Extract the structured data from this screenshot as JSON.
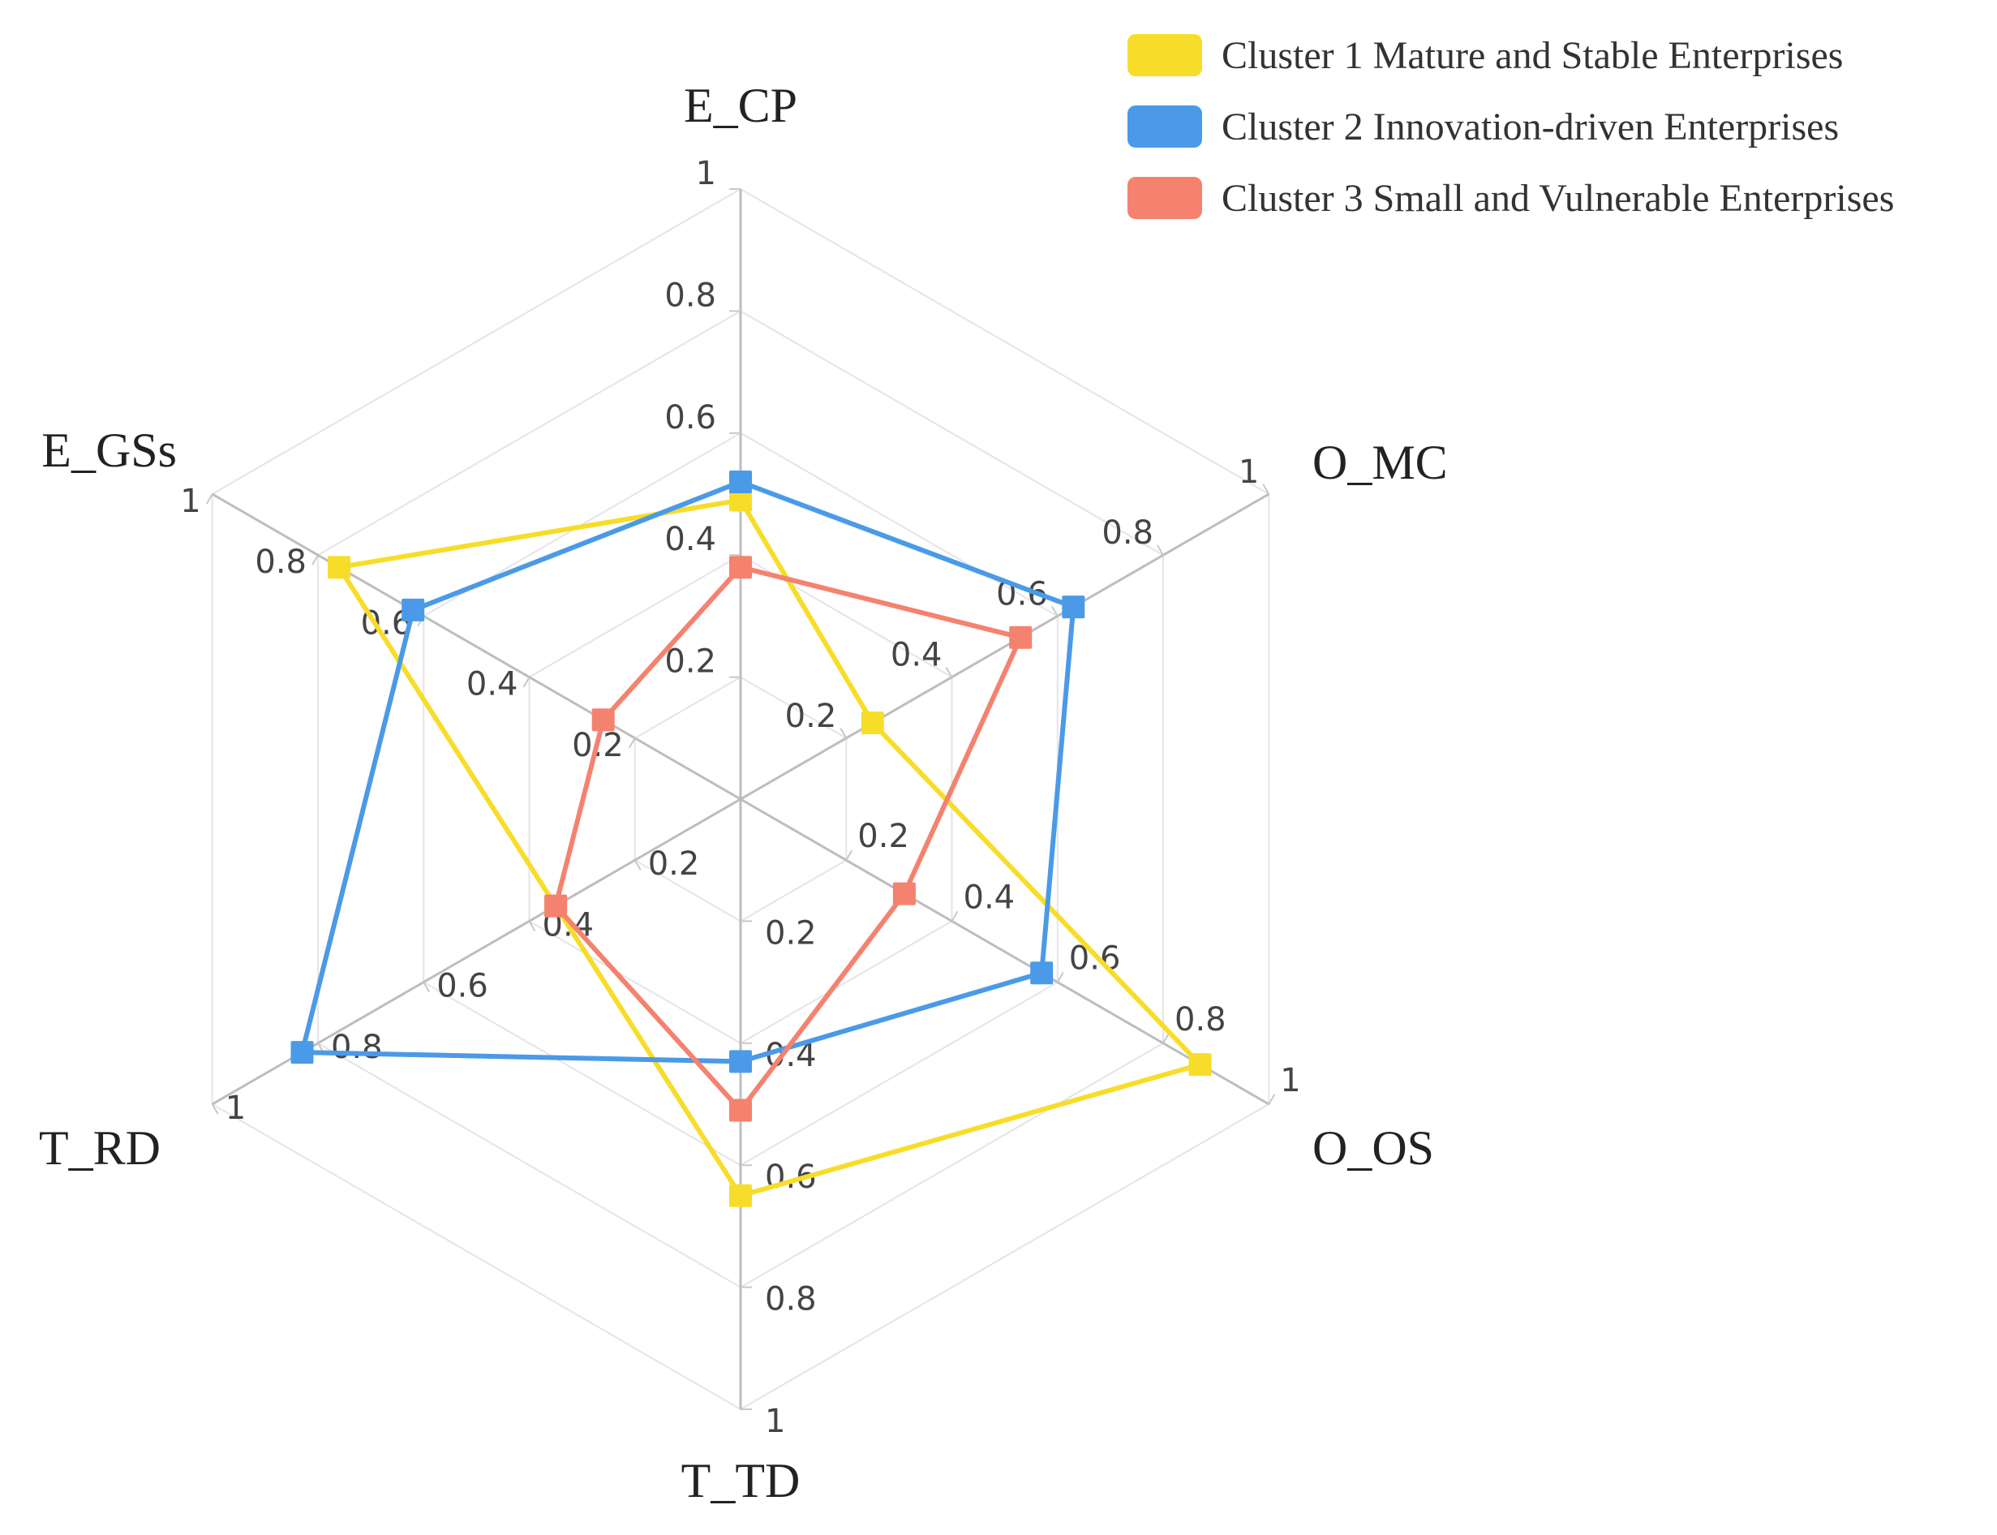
{
  "chart_data": {
    "type": "radar",
    "axes": [
      "E_CP",
      "O_MC",
      "O_OS",
      "T_TD",
      "T_RD",
      "E_GSs"
    ],
    "range": [
      0,
      1
    ],
    "ticks": [
      "0.2",
      "0.4",
      "0.6",
      "0.8",
      "1"
    ],
    "tick_values": [
      0.2,
      0.4,
      0.6,
      0.8,
      1
    ],
    "grid": true,
    "legend_position": "top-right",
    "series": [
      {
        "name": "Cluster 1 Mature and Stable Enterprises",
        "color": "#f7dd2a",
        "values": [
          0.49,
          0.25,
          0.87,
          0.65,
          0.35,
          0.76
        ]
      },
      {
        "name": "Cluster 2 Innovation-driven Enterprises",
        "color": "#4a9ae8",
        "values": [
          0.52,
          0.63,
          0.57,
          0.43,
          0.83,
          0.62
        ]
      },
      {
        "name": "Cluster 3 Small and Vulnerable Enterprises",
        "color": "#f4826f",
        "values": [
          0.38,
          0.53,
          0.31,
          0.51,
          0.35,
          0.26
        ]
      }
    ]
  }
}
